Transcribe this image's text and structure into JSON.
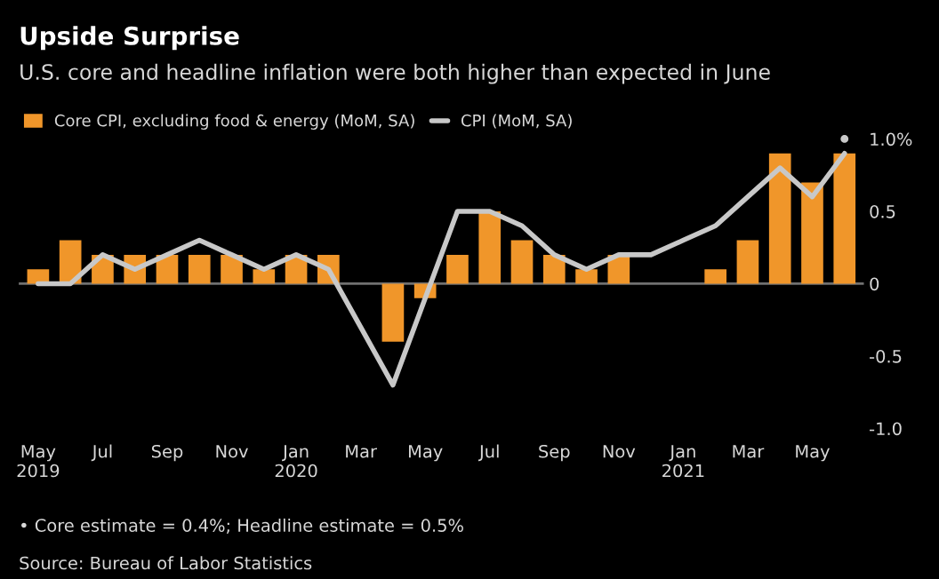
{
  "chart_data": {
    "type": "bar",
    "title": "Upside Surprise",
    "subtitle": "U.S. core and headline inflation were both higher than expected in June",
    "categories": [
      "May\n2019",
      null,
      "Jul",
      null,
      "Sep",
      null,
      "Nov",
      null,
      "Jan\n2020",
      null,
      "Mar",
      null,
      "May",
      null,
      "Jul",
      null,
      "Sep",
      null,
      "Nov",
      null,
      "Jan\n2021",
      null,
      "Mar",
      null,
      "May",
      null
    ],
    "series": [
      {
        "name": "Core CPI, excluding food & energy (MoM, SA)",
        "color": "#f0962a",
        "values": [
          0.1,
          0.3,
          0.2,
          0.2,
          0.2,
          0.2,
          0.2,
          0.1,
          0.2,
          0.2,
          0,
          -0.4,
          -0.1,
          0.2,
          0.5,
          0.3,
          0.2,
          0.1,
          0.2,
          0,
          0,
          0.1,
          0.3,
          0.9,
          0.7,
          0.9
        ]
      },
      {
        "name": "CPI (MoM, SA)",
        "type": "line",
        "color": "#c8c8c8",
        "values": [
          0.0,
          0.0,
          0.2,
          0.1,
          0.2,
          0.3,
          0.2,
          0.1,
          0.2,
          0.1,
          -0.3,
          -0.7,
          -0.1,
          0.5,
          0.5,
          0.4,
          0.2,
          0.1,
          0.2,
          0.2,
          0.3,
          0.4,
          0.6,
          0.8,
          0.6,
          0.9
        ]
      },
      {
        "type": "scatter",
        "color": "#c8c8c8",
        "values": [
          null,
          null,
          null,
          null,
          null,
          null,
          null,
          null,
          null,
          null,
          null,
          null,
          null,
          null,
          null,
          null,
          null,
          null,
          null,
          null,
          null,
          null,
          null,
          null,
          null,
          1.0
        ]
      }
    ],
    "ylim": [
      -1.0,
      1.0
    ],
    "yticks": [
      {
        "value": 1.0,
        "label": "1.0%"
      },
      {
        "value": 0.5,
        "label": "0.5"
      },
      0,
      {
        "value": -0.5,
        "label": "-0.5"
      },
      {
        "value": -1.0,
        "label": "-1.0"
      }
    ],
    "ref_lines": [
      {
        "axis": "y",
        "value": 0,
        "color": "#707070"
      }
    ],
    "legend": "top left",
    "grid": false,
    "annotations": [
      "• Core estimate = 0.4%; Headline estimate = 0.5%",
      "Source: Bureau of Labor Statistics"
    ]
  }
}
